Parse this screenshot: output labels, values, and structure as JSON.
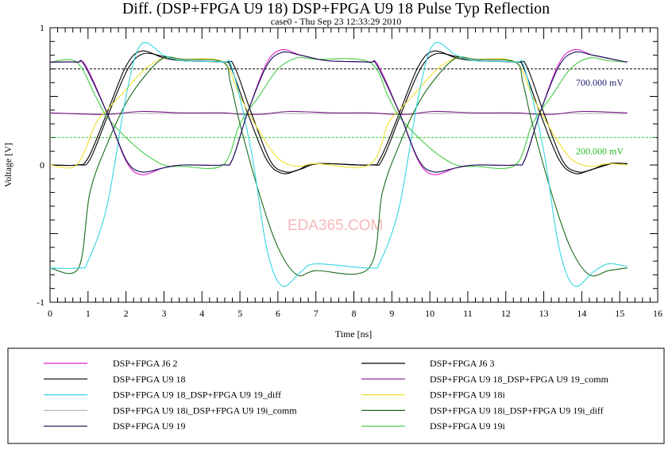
{
  "chart_data": {
    "type": "line",
    "title": "Diff. (DSP+FPGA U9 18) DSP+FPGA U9 18 Pulse Typ Reflection",
    "subtitle": "case0 - Thu Sep 23 12:33:29 2010",
    "xlabel": "Time [ns]",
    "ylabel": "Voltage [V]",
    "xlim": [
      0,
      16
    ],
    "ylim": [
      -1,
      1
    ],
    "xticks": [
      "0",
      "1",
      "2",
      "3",
      "4",
      "5",
      "6",
      "7",
      "8",
      "9",
      "10",
      "11",
      "12",
      "13",
      "14",
      "15",
      "16"
    ],
    "yticks": [
      "1",
      "0",
      "-1"
    ],
    "watermark": "EDA365.COM",
    "markers": [
      {
        "value": 0.7,
        "label": "700.000 mV",
        "color": "#000000",
        "label_color": "#1a1a6e"
      },
      {
        "value": 0.2,
        "label": "200.000 mV",
        "color": "#33cc33",
        "label_color": "#22bb22"
      }
    ],
    "series": [
      {
        "name": "DSP+FPGA J6 2",
        "color": "#e020d0",
        "points": [
          [
            0,
            0.75
          ],
          [
            0.7,
            0.75
          ],
          [
            0.95,
            0.72
          ],
          [
            1.5,
            0.38
          ],
          [
            2.0,
            0.03
          ],
          [
            2.4,
            -0.07
          ],
          [
            3.0,
            -0.02
          ],
          [
            3.5,
            0.0
          ],
          [
            4.55,
            0.0
          ],
          [
            4.8,
            0.04
          ],
          [
            5.2,
            0.38
          ],
          [
            5.7,
            0.74
          ],
          [
            6.1,
            0.84
          ],
          [
            6.6,
            0.8
          ],
          [
            7.3,
            0.76
          ],
          [
            8.4,
            0.75
          ],
          [
            8.65,
            0.72
          ],
          [
            9.2,
            0.38
          ],
          [
            9.7,
            0.03
          ],
          [
            10.1,
            -0.07
          ],
          [
            10.7,
            -0.02
          ],
          [
            11.2,
            0.0
          ],
          [
            12.25,
            0.0
          ],
          [
            12.5,
            0.04
          ],
          [
            12.9,
            0.38
          ],
          [
            13.4,
            0.74
          ],
          [
            13.8,
            0.84
          ],
          [
            14.3,
            0.8
          ],
          [
            15.0,
            0.76
          ],
          [
            15.2,
            0.75
          ]
        ]
      },
      {
        "name": "DSP+FPGA J6 3",
        "color": "#000000",
        "points": [
          [
            0,
            0
          ],
          [
            0.75,
            0
          ],
          [
            1.05,
            0.04
          ],
          [
            1.55,
            0.38
          ],
          [
            2.05,
            0.7
          ],
          [
            2.45,
            0.81
          ],
          [
            3.0,
            0.79
          ],
          [
            3.5,
            0.76
          ],
          [
            4.6,
            0.75
          ],
          [
            4.85,
            0.72
          ],
          [
            5.3,
            0.38
          ],
          [
            5.8,
            0.03
          ],
          [
            6.2,
            -0.05
          ],
          [
            6.6,
            -0.03
          ],
          [
            7.1,
            0.01
          ],
          [
            8.45,
            0
          ],
          [
            8.75,
            0.04
          ],
          [
            9.25,
            0.38
          ],
          [
            9.75,
            0.7
          ],
          [
            10.15,
            0.81
          ],
          [
            10.7,
            0.79
          ],
          [
            11.2,
            0.76
          ],
          [
            12.3,
            0.75
          ],
          [
            12.55,
            0.72
          ],
          [
            13.0,
            0.38
          ],
          [
            13.5,
            0.03
          ],
          [
            13.9,
            -0.05
          ],
          [
            14.3,
            -0.03
          ],
          [
            14.8,
            0.01
          ],
          [
            15.2,
            0.01
          ]
        ]
      },
      {
        "name": "DSP+FPGA U9 18",
        "color": "#000000",
        "points": [
          [
            0,
            0
          ],
          [
            0.7,
            0
          ],
          [
            1.0,
            0.05
          ],
          [
            1.5,
            0.38
          ],
          [
            2.0,
            0.72
          ],
          [
            2.4,
            0.83
          ],
          [
            3.0,
            0.78
          ],
          [
            3.5,
            0.76
          ],
          [
            4.55,
            0.75
          ],
          [
            4.75,
            0.72
          ],
          [
            5.2,
            0.38
          ],
          [
            5.7,
            0.04
          ],
          [
            6.1,
            -0.06
          ],
          [
            6.5,
            -0.04
          ],
          [
            7.0,
            0.01
          ],
          [
            8.4,
            0
          ],
          [
            8.7,
            0.05
          ],
          [
            9.2,
            0.38
          ],
          [
            9.7,
            0.72
          ],
          [
            10.1,
            0.83
          ],
          [
            10.7,
            0.78
          ],
          [
            11.2,
            0.76
          ],
          [
            12.25,
            0.75
          ],
          [
            12.45,
            0.72
          ],
          [
            12.9,
            0.38
          ],
          [
            13.4,
            0.04
          ],
          [
            13.8,
            -0.06
          ],
          [
            14.2,
            -0.04
          ],
          [
            14.7,
            0.01
          ],
          [
            15.2,
            0.01
          ]
        ]
      },
      {
        "name": "DSP+FPGA U9 18_DSP+FPGA U9 19_comm",
        "color": "#7a1a8a",
        "points": [
          [
            0,
            0.38
          ],
          [
            1.0,
            0.37
          ],
          [
            1.6,
            0.37
          ],
          [
            2.4,
            0.39
          ],
          [
            3.5,
            0.38
          ],
          [
            4.55,
            0.38
          ],
          [
            5.0,
            0.37
          ],
          [
            5.6,
            0.37
          ],
          [
            6.3,
            0.39
          ],
          [
            7.5,
            0.38
          ],
          [
            8.4,
            0.38
          ],
          [
            9.0,
            0.37
          ],
          [
            9.5,
            0.37
          ],
          [
            10.1,
            0.39
          ],
          [
            11.2,
            0.38
          ],
          [
            12.25,
            0.38
          ],
          [
            12.8,
            0.37
          ],
          [
            13.3,
            0.37
          ],
          [
            14.0,
            0.39
          ],
          [
            15.2,
            0.38
          ]
        ]
      },
      {
        "name": "DSP+FPGA U9 18_DSP+FPGA U9 19_diff",
        "color": "#33d6e0",
        "points": [
          [
            0,
            -0.75
          ],
          [
            0.8,
            -0.75
          ],
          [
            1.0,
            -0.7
          ],
          [
            1.5,
            -0.3
          ],
          [
            2.0,
            0.5
          ],
          [
            2.4,
            0.88
          ],
          [
            3.0,
            0.8
          ],
          [
            3.5,
            0.76
          ],
          [
            4.55,
            0.75
          ],
          [
            4.8,
            0.7
          ],
          [
            5.3,
            0.1
          ],
          [
            5.7,
            -0.6
          ],
          [
            6.1,
            -0.88
          ],
          [
            6.6,
            -0.78
          ],
          [
            7.0,
            -0.72
          ],
          [
            8.4,
            -0.75
          ],
          [
            8.7,
            -0.7
          ],
          [
            9.2,
            -0.3
          ],
          [
            9.7,
            0.5
          ],
          [
            10.1,
            0.88
          ],
          [
            10.7,
            0.8
          ],
          [
            11.2,
            0.76
          ],
          [
            12.25,
            0.75
          ],
          [
            12.5,
            0.7
          ],
          [
            13.0,
            0.1
          ],
          [
            13.4,
            -0.6
          ],
          [
            13.8,
            -0.88
          ],
          [
            14.3,
            -0.78
          ],
          [
            14.7,
            -0.72
          ],
          [
            15.2,
            -0.74
          ]
        ]
      },
      {
        "name": "DSP+FPGA U9 18i",
        "color": "#f0e030",
        "points": [
          [
            0,
            0
          ],
          [
            0.7,
            0
          ],
          [
            1.2,
            0.3
          ],
          [
            1.5,
            0.4
          ],
          [
            2.0,
            0.55
          ],
          [
            2.5,
            0.7
          ],
          [
            3.0,
            0.78
          ],
          [
            3.5,
            0.77
          ],
          [
            4.55,
            0.75
          ],
          [
            5.0,
            0.5
          ],
          [
            5.5,
            0.25
          ],
          [
            6.0,
            0.05
          ],
          [
            6.5,
            -0.01
          ],
          [
            7.0,
            0.01
          ],
          [
            8.4,
            0
          ],
          [
            8.9,
            0.3
          ],
          [
            9.2,
            0.4
          ],
          [
            9.7,
            0.55
          ],
          [
            10.2,
            0.7
          ],
          [
            10.7,
            0.78
          ],
          [
            11.2,
            0.77
          ],
          [
            12.25,
            0.75
          ],
          [
            12.7,
            0.5
          ],
          [
            13.2,
            0.25
          ],
          [
            13.7,
            0.05
          ],
          [
            14.2,
            -0.01
          ],
          [
            14.7,
            0.01
          ],
          [
            15.2,
            0.0
          ]
        ]
      },
      {
        "name": "DSP+FPGA U9 18i_DSP+FPGA U9 19i_comm",
        "color": "#b8b8b8",
        "points": [
          [
            0,
            0.375
          ],
          [
            15.2,
            0.375
          ]
        ]
      },
      {
        "name": "DSP+FPGA U9 18i_DSP+FPGA U9 19i_diff",
        "color": "#1a6a1a",
        "points": [
          [
            0,
            -0.75
          ],
          [
            0.75,
            -0.75
          ],
          [
            1.05,
            -0.2
          ],
          [
            1.5,
            0.15
          ],
          [
            2.0,
            0.45
          ],
          [
            2.5,
            0.65
          ],
          [
            3.0,
            0.78
          ],
          [
            3.5,
            0.77
          ],
          [
            4.55,
            0.75
          ],
          [
            4.75,
            0.6
          ],
          [
            5.0,
            0.3
          ],
          [
            5.5,
            -0.2
          ],
          [
            6.0,
            -0.6
          ],
          [
            6.5,
            -0.8
          ],
          [
            7.0,
            -0.77
          ],
          [
            8.4,
            -0.75
          ],
          [
            8.75,
            -0.2
          ],
          [
            9.2,
            0.15
          ],
          [
            9.7,
            0.45
          ],
          [
            10.2,
            0.65
          ],
          [
            10.7,
            0.78
          ],
          [
            11.2,
            0.77
          ],
          [
            12.25,
            0.75
          ],
          [
            12.45,
            0.6
          ],
          [
            12.7,
            0.3
          ],
          [
            13.2,
            -0.2
          ],
          [
            13.7,
            -0.6
          ],
          [
            14.2,
            -0.8
          ],
          [
            14.7,
            -0.77
          ],
          [
            15.2,
            -0.75
          ]
        ]
      },
      {
        "name": "DSP+FPGA U9 19",
        "color": "#101050",
        "points": [
          [
            0,
            0.75
          ],
          [
            0.7,
            0.75
          ],
          [
            0.9,
            0.73
          ],
          [
            1.5,
            0.38
          ],
          [
            2.0,
            0.04
          ],
          [
            2.4,
            -0.05
          ],
          [
            3.0,
            -0.02
          ],
          [
            3.5,
            0.0
          ],
          [
            4.55,
            0.0
          ],
          [
            4.8,
            0.04
          ],
          [
            5.2,
            0.38
          ],
          [
            5.7,
            0.72
          ],
          [
            6.1,
            0.82
          ],
          [
            6.6,
            0.8
          ],
          [
            7.3,
            0.76
          ],
          [
            8.4,
            0.75
          ],
          [
            8.6,
            0.73
          ],
          [
            9.2,
            0.38
          ],
          [
            9.7,
            0.04
          ],
          [
            10.1,
            -0.05
          ],
          [
            10.7,
            -0.02
          ],
          [
            11.2,
            0.0
          ],
          [
            12.25,
            0.0
          ],
          [
            12.5,
            0.04
          ],
          [
            12.9,
            0.38
          ],
          [
            13.4,
            0.72
          ],
          [
            13.8,
            0.82
          ],
          [
            14.3,
            0.8
          ],
          [
            15.0,
            0.76
          ],
          [
            15.2,
            0.75
          ]
        ]
      },
      {
        "name": "DSP+FPGA U9 19i",
        "color": "#44cc44",
        "points": [
          [
            0,
            0.75
          ],
          [
            0.7,
            0.75
          ],
          [
            1.2,
            0.5
          ],
          [
            1.5,
            0.35
          ],
          [
            2.0,
            0.2
          ],
          [
            2.5,
            0.08
          ],
          [
            3.0,
            0.0
          ],
          [
            3.5,
            -0.01
          ],
          [
            4.55,
            0.0
          ],
          [
            5.0,
            0.3
          ],
          [
            5.5,
            0.5
          ],
          [
            6.0,
            0.7
          ],
          [
            6.5,
            0.78
          ],
          [
            7.0,
            0.77
          ],
          [
            8.4,
            0.75
          ],
          [
            8.9,
            0.5
          ],
          [
            9.2,
            0.35
          ],
          [
            9.7,
            0.2
          ],
          [
            10.2,
            0.08
          ],
          [
            10.7,
            0.0
          ],
          [
            11.2,
            -0.01
          ],
          [
            12.25,
            0.0
          ],
          [
            12.7,
            0.3
          ],
          [
            13.2,
            0.5
          ],
          [
            13.7,
            0.7
          ],
          [
            14.2,
            0.78
          ],
          [
            14.7,
            0.76
          ],
          [
            15.2,
            0.75
          ]
        ]
      }
    ]
  }
}
